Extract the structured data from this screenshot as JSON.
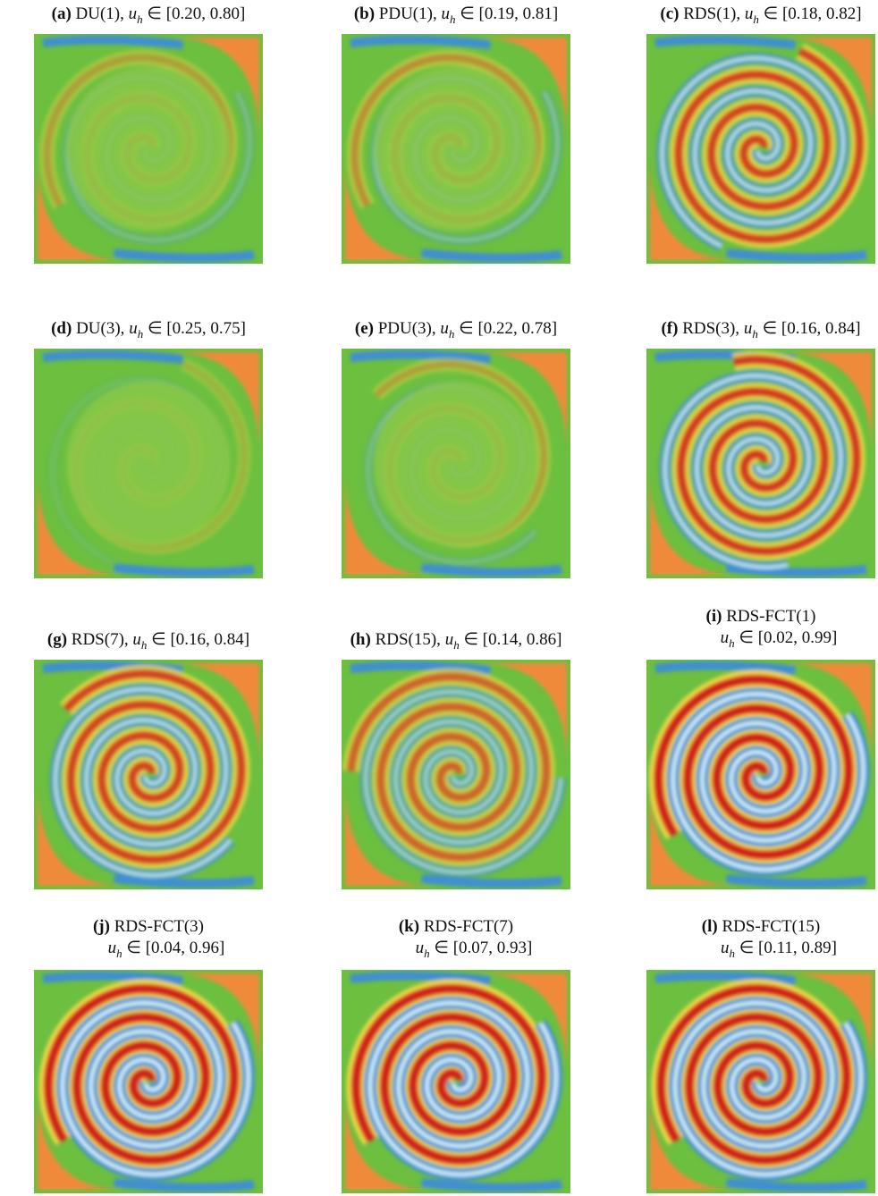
{
  "variable": "u",
  "subscript": "h",
  "relation": "∈",
  "panels": [
    {
      "label": "(a)",
      "method": "DU(1),",
      "range": "[0.20, 0.80]"
    },
    {
      "label": "(b)",
      "method": "PDU(1),",
      "range": "[0.19, 0.81]"
    },
    {
      "label": "(c)",
      "method": "RDS(1),",
      "range": "[0.18, 0.82]"
    },
    {
      "label": "(d)",
      "method": "DU(3),",
      "range": "[0.25, 0.75]"
    },
    {
      "label": "(e)",
      "method": "PDU(3),",
      "range": "[0.22, 0.78]"
    },
    {
      "label": "(f)",
      "method": "RDS(3),",
      "range": "[0.16, 0.84]"
    },
    {
      "label": "(g)",
      "method": "RDS(7),",
      "range": "[0.16, 0.84]"
    },
    {
      "label": "(h)",
      "method": "RDS(15),",
      "range": "[0.14, 0.86]"
    },
    {
      "label": "(i)",
      "method": "RDS-FCT(1)",
      "range": "[0.02, 0.99]"
    },
    {
      "label": "(j)",
      "method": "RDS-FCT(3)",
      "range": "[0.04, 0.96]"
    },
    {
      "label": "(k)",
      "method": "RDS-FCT(7)",
      "range": "[0.07, 0.93]"
    },
    {
      "label": "(l)",
      "method": "RDS-FCT(15)",
      "range": "[0.11, 0.89]"
    }
  ]
}
